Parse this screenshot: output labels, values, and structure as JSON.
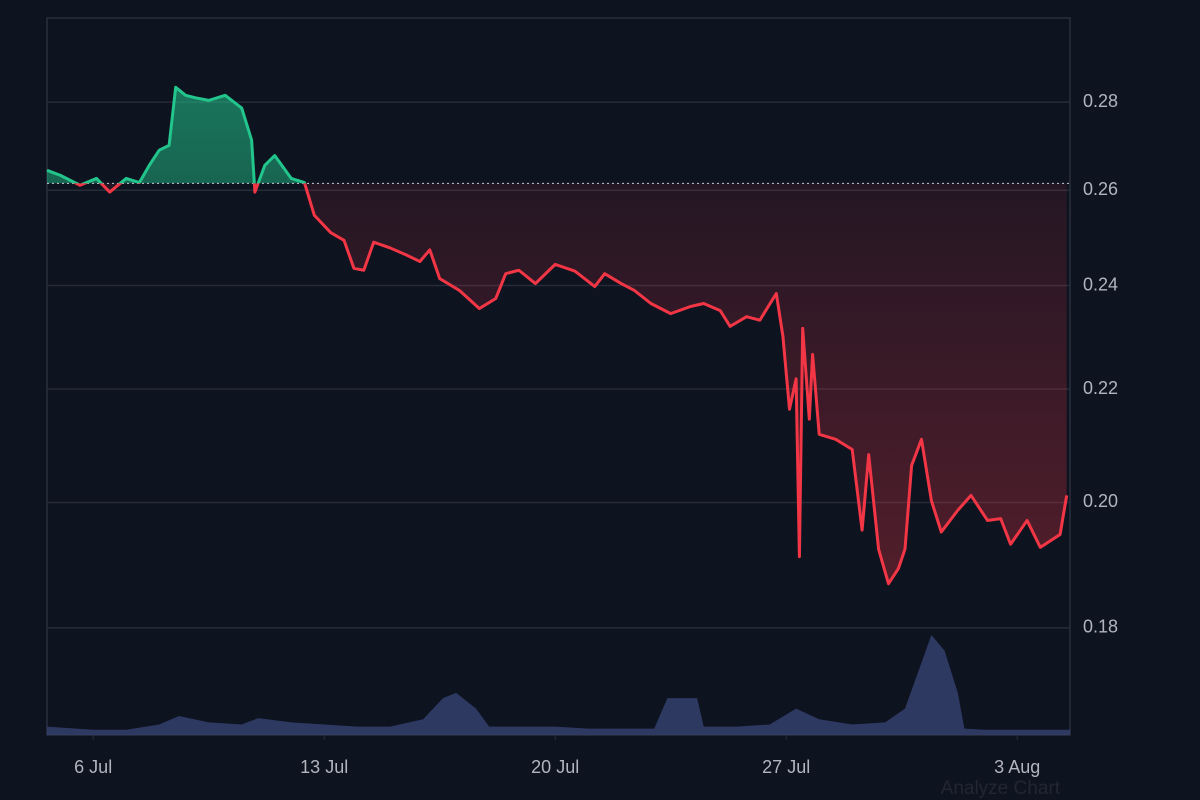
{
  "chart_data": {
    "type": "baseline-line",
    "log_scale": true,
    "grid": true,
    "baseline": 0.2615,
    "up_color": "#22c58b",
    "down_color": "#f23645",
    "watermark": "Analyze Chart",
    "xlim": [
      4.6,
      35.6
    ],
    "xticks": [
      {
        "value": 6,
        "label": "6 Jul"
      },
      {
        "value": 13,
        "label": "13 Jul"
      },
      {
        "value": 20,
        "label": "20 Jul"
      },
      {
        "value": 27,
        "label": "27 Jul"
      },
      {
        "value": 34,
        "label": "3 Aug"
      }
    ],
    "ylim": [
      0.1645,
      0.3005
    ],
    "yticks": [
      {
        "value": 0.18,
        "label": "0.18"
      },
      {
        "value": 0.2,
        "label": "0.20"
      },
      {
        "value": 0.22,
        "label": "0.22"
      },
      {
        "value": 0.24,
        "label": "0.24"
      },
      {
        "value": 0.26,
        "label": "0.26"
      },
      {
        "value": 0.28,
        "label": "0.28"
      }
    ],
    "series": [
      {
        "x": [
          4.6,
          5.0,
          5.6,
          6.1,
          6.5,
          7.0,
          7.4,
          7.7,
          8.0,
          8.3,
          8.5,
          8.8,
          9.1,
          9.5,
          10.0,
          10.5,
          10.8,
          10.9,
          11.2,
          11.5,
          12.0,
          12.4,
          12.7,
          13.2,
          13.6,
          13.9,
          14.2,
          14.5,
          15.0,
          15.5,
          15.9,
          16.2,
          16.5,
          17.1,
          17.7,
          18.2,
          18.5,
          18.9,
          19.4,
          20.0,
          20.6,
          21.2,
          21.5,
          22.0,
          22.4,
          22.9,
          23.5,
          24.1,
          24.5,
          25.0,
          25.3,
          25.8,
          26.2,
          26.7,
          26.9,
          27.1,
          27.3,
          27.4,
          27.5,
          27.7,
          27.8,
          28.0,
          28.5,
          29.0,
          29.3,
          29.5,
          29.8,
          30.1,
          30.4,
          30.6,
          30.8,
          31.1,
          31.4,
          31.7,
          32.2,
          32.6,
          33.1,
          33.5,
          33.8,
          34.3,
          34.7,
          35.3,
          35.5
        ],
        "values": [
          0.2644,
          0.2633,
          0.2611,
          0.2626,
          0.2596,
          0.2626,
          0.2617,
          0.2655,
          0.2689,
          0.27,
          0.2835,
          0.2816,
          0.281,
          0.2804,
          0.2816,
          0.2786,
          0.2712,
          0.2596,
          0.2655,
          0.2677,
          0.2626,
          0.2617,
          0.2546,
          0.2509,
          0.2493,
          0.2435,
          0.2431,
          0.2489,
          0.2477,
          0.2462,
          0.2449,
          0.2473,
          0.2414,
          0.239,
          0.2354,
          0.2374,
          0.2424,
          0.2431,
          0.2404,
          0.2443,
          0.2429,
          0.2398,
          0.2424,
          0.2404,
          0.239,
          0.2364,
          0.2344,
          0.2358,
          0.2364,
          0.235,
          0.2319,
          0.2338,
          0.2331,
          0.2384,
          0.23,
          0.2163,
          0.2219,
          0.1911,
          0.2315,
          0.2145,
          0.2265,
          0.2118,
          0.2109,
          0.2091,
          0.1954,
          0.2082,
          0.1923,
          0.1868,
          0.1892,
          0.1923,
          0.2063,
          0.2109,
          0.2003,
          0.1951,
          0.1987,
          0.2012,
          0.197,
          0.1973,
          0.1931,
          0.197,
          0.1926,
          0.1947,
          0.2012
        ]
      }
    ],
    "volume": {
      "color": "#34416e",
      "x": [
        4.6,
        6,
        7,
        8,
        8.6,
        9.5,
        10.5,
        11,
        12,
        13,
        14,
        15,
        16,
        16.6,
        17,
        17.6,
        18,
        19,
        20,
        21,
        22,
        23,
        23.4,
        24.3,
        24.5,
        25.5,
        26.5,
        27.3,
        28,
        29,
        30,
        30.6,
        31,
        31.4,
        31.8,
        32.2,
        32.4,
        33,
        34,
        35.6
      ],
      "values": [
        8,
        5,
        5,
        10,
        18,
        12,
        10,
        16,
        12,
        10,
        8,
        8,
        15,
        35,
        40,
        25,
        8,
        8,
        8,
        6,
        6,
        6,
        35,
        35,
        8,
        8,
        10,
        25,
        15,
        10,
        12,
        25,
        60,
        95,
        80,
        40,
        6,
        5,
        5,
        5
      ]
    }
  }
}
